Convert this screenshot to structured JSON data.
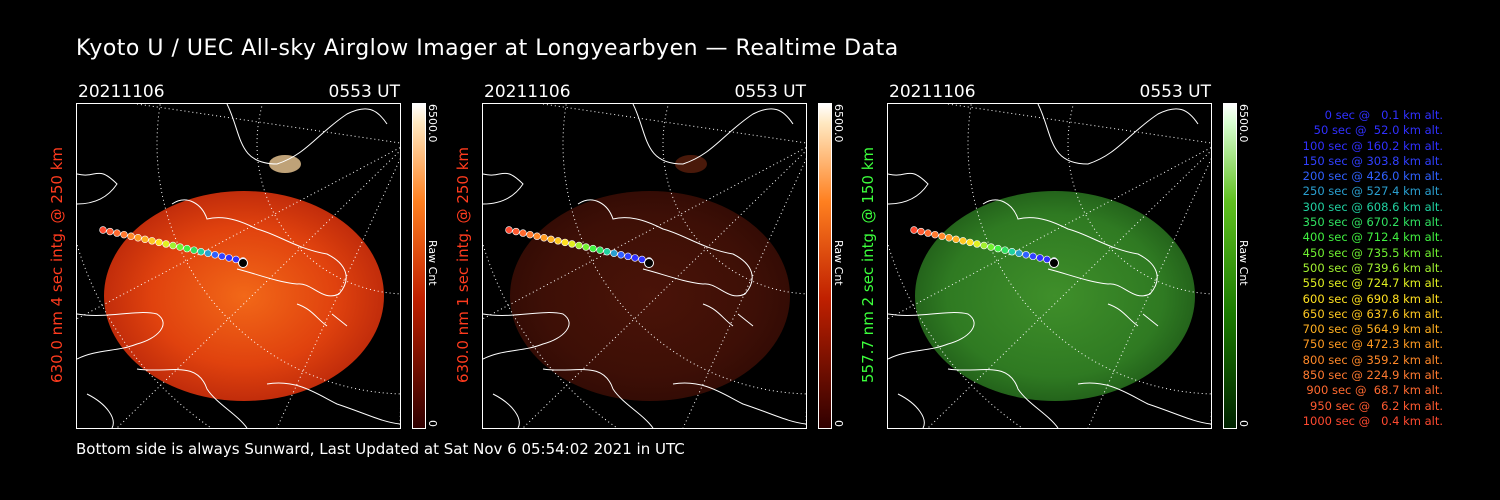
{
  "title": "Kyoto U / UEC All-sky Airglow Imager at Longyearbyen — Realtime Data",
  "footer": "Bottom side is always Sunward, Last Updated at Sat Nov  6 05:54:02 2021 in UTC",
  "panels": [
    {
      "date": "20211106",
      "time": "0553 UT",
      "ylabel": "630.0 nm 4 sec intg. @ 250 km",
      "ylabel_color": "#ff3b1e",
      "cbar_max": "6500.0",
      "cbar_unit": "Raw Cnt",
      "cbar_min": "0",
      "colormap": "red",
      "brightness": "bright"
    },
    {
      "date": "20211106",
      "time": "0553 UT",
      "ylabel": "630.0 nm 1 sec intg. @ 250 km",
      "ylabel_color": "#ff3b1e",
      "cbar_max": "6500.0",
      "cbar_unit": "Raw Cnt",
      "cbar_min": "0",
      "colormap": "red",
      "brightness": "dim"
    },
    {
      "date": "20211106",
      "time": "0553 UT",
      "ylabel": "557.7 nm 2 sec intg. @ 150 km",
      "ylabel_color": "#3cff3c",
      "cbar_max": "6500.0",
      "cbar_unit": "Raw Cnt",
      "cbar_min": "0",
      "colormap": "green",
      "brightness": "dim"
    }
  ],
  "legend": [
    {
      "text": "   0 sec @   0.1 km alt.",
      "color": "#3030ff"
    },
    {
      "text": "  50 sec @  52.0 km alt.",
      "color": "#3030ff"
    },
    {
      "text": " 100 sec @ 160.2 km alt.",
      "color": "#3030ff"
    },
    {
      "text": " 150 sec @ 303.8 km alt.",
      "color": "#3040ff"
    },
    {
      "text": " 200 sec @ 426.0 km alt.",
      "color": "#3060ff"
    },
    {
      "text": " 250 sec @ 527.4 km alt.",
      "color": "#2a9fd0"
    },
    {
      "text": " 300 sec @ 608.6 km alt.",
      "color": "#20d0a0"
    },
    {
      "text": " 350 sec @ 670.2 km alt.",
      "color": "#30e060"
    },
    {
      "text": " 400 sec @ 712.4 km alt.",
      "color": "#40f040"
    },
    {
      "text": " 450 sec @ 735.5 km alt.",
      "color": "#70f030"
    },
    {
      "text": " 500 sec @ 739.6 km alt.",
      "color": "#a0f030"
    },
    {
      "text": " 550 sec @ 724.7 km alt.",
      "color": "#e0f020"
    },
    {
      "text": " 600 sec @ 690.8 km alt.",
      "color": "#ffe020"
    },
    {
      "text": " 650 sec @ 637.6 km alt.",
      "color": "#ffc820"
    },
    {
      "text": " 700 sec @ 564.9 km alt.",
      "color": "#ffb020"
    },
    {
      "text": " 750 sec @ 472.3 km alt.",
      "color": "#ff9a20"
    },
    {
      "text": " 800 sec @ 359.2 km alt.",
      "color": "#ff8828"
    },
    {
      "text": " 850 sec @ 224.9 km alt.",
      "color": "#ff7a30"
    },
    {
      "text": " 900 sec @  68.7 km alt.",
      "color": "#ff6a30"
    },
    {
      "text": " 950 sec @   6.2 km alt.",
      "color": "#ff5a30"
    },
    {
      "text": "1000 sec @   0.4 km alt.",
      "color": "#ff4a30"
    }
  ]
}
